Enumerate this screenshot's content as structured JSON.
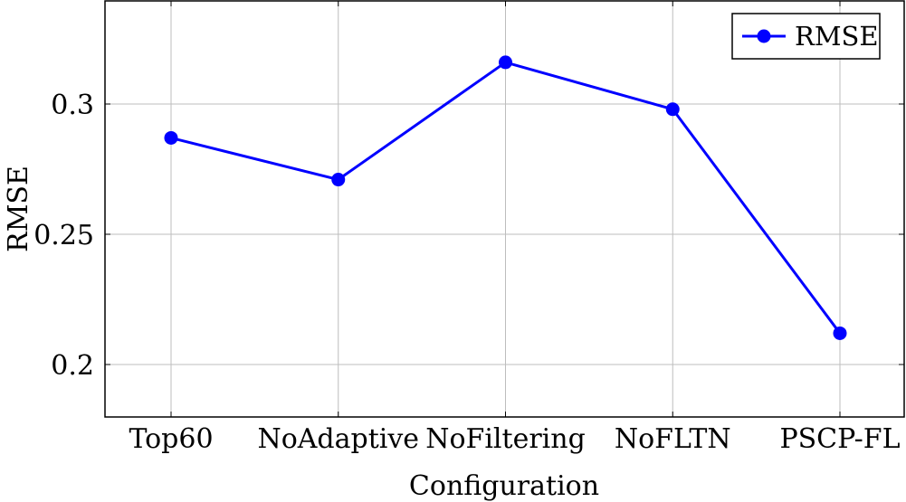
{
  "chart_data": {
    "type": "line",
    "title": "",
    "xlabel": "Configuration",
    "ylabel": "RMSE",
    "categories": [
      "Top60",
      "NoAdaptive",
      "NoFiltering",
      "NoFLTN",
      "PSCP-FL"
    ],
    "series": [
      {
        "name": "RMSE",
        "values": [
          0.287,
          0.271,
          0.316,
          0.298,
          0.212
        ],
        "color": "#0000ff",
        "marker": "circle"
      }
    ],
    "yticks": [
      0.2,
      0.25,
      0.3
    ],
    "ytick_labels": [
      "0.2",
      "0.25",
      "0.3"
    ],
    "ylim": [
      0.2,
      0.3
    ],
    "grid": true,
    "legend_position": "top-right"
  }
}
